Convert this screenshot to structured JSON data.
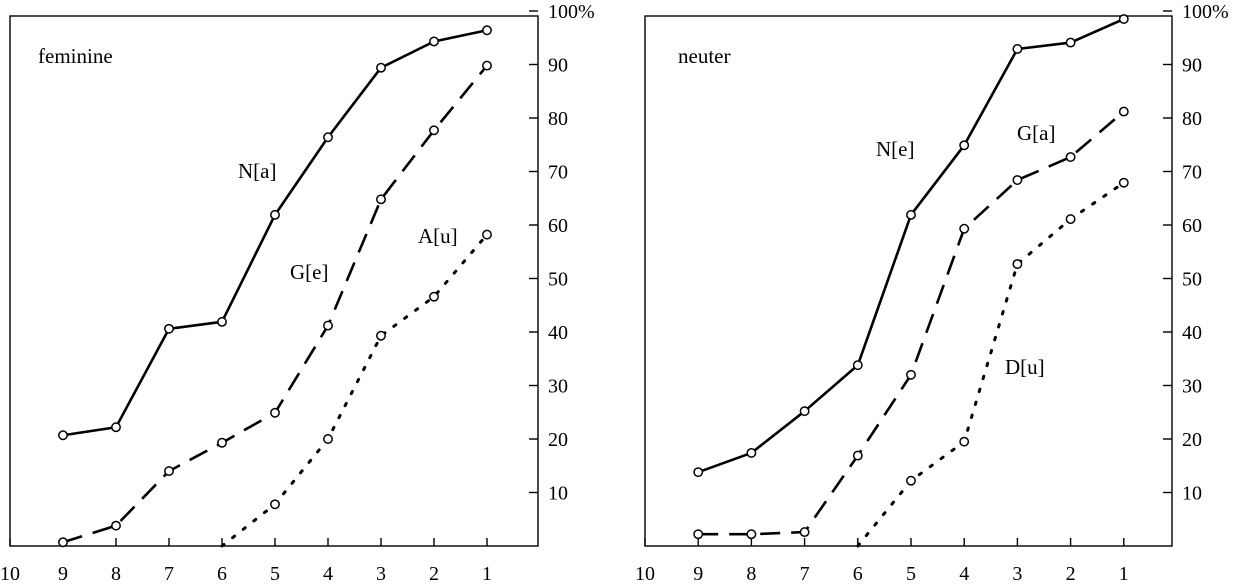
{
  "chart_data": [
    {
      "type": "line",
      "title": "feminine",
      "x_ticks": [
        "10",
        "9",
        "8",
        "7",
        "6",
        "5",
        "4",
        "3",
        "2",
        "1"
      ],
      "y_ticks": [
        "10",
        "20",
        "30",
        "40",
        "50",
        "60",
        "70",
        "80",
        "90",
        "100%"
      ],
      "xlim": [
        10,
        0
      ],
      "ylim": [
        0,
        100
      ],
      "grid": false,
      "series": [
        {
          "name": "N[a]",
          "line": "solid",
          "points": [
            [
              9,
              20.7
            ],
            [
              8,
              22.2
            ],
            [
              7,
              40.6
            ],
            [
              6,
              41.9
            ],
            [
              5,
              61.9
            ],
            [
              4,
              76.4
            ],
            [
              3,
              89.4
            ],
            [
              2,
              94.3
            ],
            [
              1,
              96.4
            ]
          ]
        },
        {
          "name": "G[e]",
          "line": "dashed",
          "points": [
            [
              9,
              0.7
            ],
            [
              8,
              3.8
            ],
            [
              7,
              14
            ],
            [
              6,
              19.3
            ],
            [
              5,
              24.9
            ],
            [
              4,
              41.2
            ],
            [
              3,
              64.8
            ],
            [
              2,
              77.7
            ],
            [
              1,
              89.8
            ]
          ]
        },
        {
          "name": "A[u]",
          "line": "dotted",
          "points": [
            [
              6,
              0
            ],
            [
              5,
              7.8
            ],
            [
              4,
              20
            ],
            [
              3,
              39.3
            ],
            [
              2,
              46.6
            ],
            [
              1,
              58.2
            ]
          ]
        }
      ]
    },
    {
      "type": "line",
      "title": "neuter",
      "x_ticks": [
        "10",
        "9",
        "8",
        "7",
        "6",
        "5",
        "4",
        "3",
        "2",
        "1"
      ],
      "y_ticks": [
        "10",
        "20",
        "30",
        "40",
        "50",
        "60",
        "70",
        "80",
        "90",
        "100%"
      ],
      "xlim": [
        10,
        0
      ],
      "ylim": [
        0,
        100
      ],
      "grid": false,
      "series": [
        {
          "name": "N[e]",
          "line": "solid",
          "points": [
            [
              9,
              13.8
            ],
            [
              8,
              17.4
            ],
            [
              7,
              25.2
            ],
            [
              6,
              33.8
            ],
            [
              5,
              61.9
            ],
            [
              4,
              74.9
            ],
            [
              3,
              92.9
            ],
            [
              2,
              94.1
            ],
            [
              1,
              98.5
            ]
          ]
        },
        {
          "name": "G[a]",
          "line": "dashed",
          "points": [
            [
              9,
              2.2
            ],
            [
              8,
              2.2
            ],
            [
              7,
              2.6
            ],
            [
              6,
              16.9
            ],
            [
              5,
              32
            ],
            [
              4,
              59.3
            ],
            [
              3,
              68.4
            ],
            [
              2,
              72.7
            ],
            [
              1,
              81.2
            ]
          ]
        },
        {
          "name": "D[u]",
          "line": "dotted",
          "points": [
            [
              6,
              0
            ],
            [
              5,
              12.2
            ],
            [
              4,
              19.5
            ],
            [
              3,
              52.7
            ],
            [
              2,
              61.1
            ],
            [
              1,
              67.9
            ]
          ]
        }
      ]
    }
  ]
}
